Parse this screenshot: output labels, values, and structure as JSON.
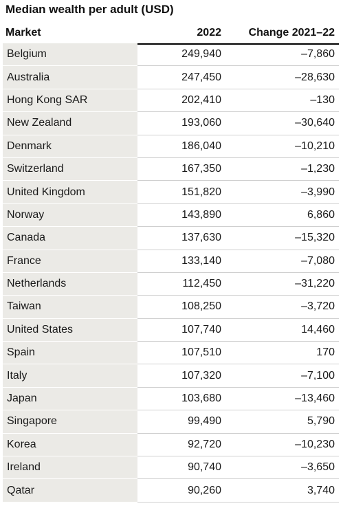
{
  "title": "Median wealth per adult (USD)",
  "table": {
    "headers": {
      "market": "Market",
      "year": "2022",
      "change": "Change 2021–22"
    },
    "rows": [
      {
        "market": "Belgium",
        "year": "249,940",
        "change": "–7,860"
      },
      {
        "market": "Australia",
        "year": "247,450",
        "change": "–28,630"
      },
      {
        "market": "Hong Kong SAR",
        "year": "202,410",
        "change": "–130"
      },
      {
        "market": "New Zealand",
        "year": "193,060",
        "change": "–30,640"
      },
      {
        "market": "Denmark",
        "year": "186,040",
        "change": "–10,210"
      },
      {
        "market": "Switzerland",
        "year": "167,350",
        "change": "–1,230"
      },
      {
        "market": "United Kingdom",
        "year": "151,820",
        "change": "–3,990"
      },
      {
        "market": "Norway",
        "year": "143,890",
        "change": "6,860"
      },
      {
        "market": "Canada",
        "year": "137,630",
        "change": "–15,320"
      },
      {
        "market": "France",
        "year": "133,140",
        "change": "–7,080"
      },
      {
        "market": "Netherlands",
        "year": "112,450",
        "change": "–31,220"
      },
      {
        "market": "Taiwan",
        "year": "108,250",
        "change": "–3,720"
      },
      {
        "market": "United States",
        "year": "107,740",
        "change": "14,460"
      },
      {
        "market": "Spain",
        "year": "107,510",
        "change": "170"
      },
      {
        "market": "Italy",
        "year": "107,320",
        "change": "–7,100"
      },
      {
        "market": "Japan",
        "year": "103,680",
        "change": "–13,460"
      },
      {
        "market": "Singapore",
        "year": "99,490",
        "change": "5,790"
      },
      {
        "market": "Korea",
        "year": "92,720",
        "change": "–10,230"
      },
      {
        "market": "Ireland",
        "year": "90,740",
        "change": "–3,650"
      },
      {
        "market": "Qatar",
        "year": "90,260",
        "change": "3,740"
      }
    ]
  }
}
